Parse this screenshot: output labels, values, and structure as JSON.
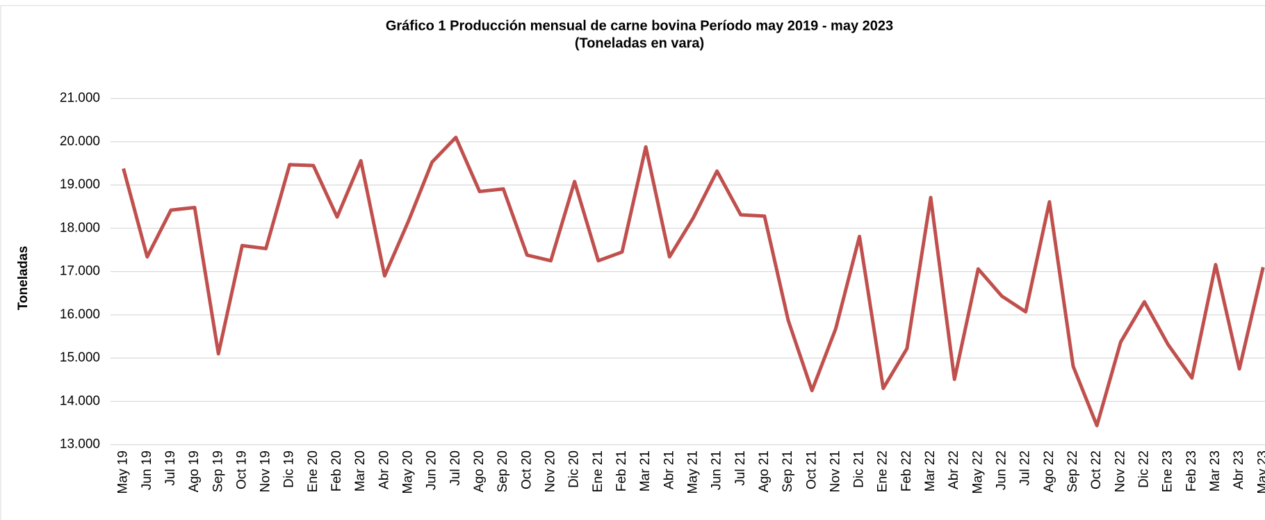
{
  "chart_data": {
    "type": "line",
    "title": "Gráfico 1 Producción mensual de carne bovina Período may 2019 - may 2023",
    "subtitle": "(Toneladas en vara)",
    "y_label": "Toneladas",
    "categories": [
      "May 19",
      "Jun 19",
      "Jul 19",
      "Ago 19",
      "Sep 19",
      "Oct 19",
      "Nov 19",
      "Dic 19",
      "Ene 20",
      "Feb 20",
      "Mar 20",
      "Abr 20",
      "May 20",
      "Jun 20",
      "Jul 20",
      "Ago 20",
      "Sep 20",
      "Oct 20",
      "Nov 20",
      "Dic 20",
      "Ene 21",
      "Feb 21",
      "Mar 21",
      "Abr 21",
      "May 21",
      "Jun 21",
      "Jul 21",
      "Ago 21",
      "Sep 21",
      "Oct 21",
      "Nov 21",
      "Dic 21",
      "Ene 22",
      "Feb 22",
      "Mar 22",
      "Abr 22",
      "May 22",
      "Jun 22",
      "Jul 22",
      "Ago 22",
      "Sep 22",
      "Oct 22",
      "Nov 22",
      "Dic 22",
      "Ene 23",
      "Feb 23",
      "Mar 23",
      "Abr 23",
      "May 23"
    ],
    "series": [
      {
        "color": "#c0504d",
        "values": [
          19380,
          17340,
          18420,
          18480,
          15100,
          17600,
          17530,
          19470,
          19450,
          18260,
          19560,
          16900,
          18160,
          19530,
          20100,
          18850,
          18910,
          17380,
          17250,
          19080,
          17250,
          17450,
          19880,
          17340,
          18240,
          19320,
          18310,
          18280,
          15870,
          14250,
          15680,
          17810,
          14300,
          15220,
          18710,
          14510,
          17060,
          16430,
          16070,
          18610,
          14810,
          13440,
          15370,
          16300,
          15310,
          14540,
          17160,
          14750,
          17100
        ]
      }
    ],
    "ylim": [
      13000,
      21000
    ],
    "yticks": [
      {
        "value": 13000,
        "label": "13.000"
      },
      {
        "value": 14000,
        "label": "14.000"
      },
      {
        "value": 15000,
        "label": "15.000"
      },
      {
        "value": 16000,
        "label": "16.000"
      },
      {
        "value": 17000,
        "label": "17.000"
      },
      {
        "value": 18000,
        "label": "18.000"
      },
      {
        "value": 19000,
        "label": "19.000"
      },
      {
        "value": 20000,
        "label": "20.000"
      },
      {
        "value": 21000,
        "label": "21.000"
      }
    ],
    "grid": true
  }
}
